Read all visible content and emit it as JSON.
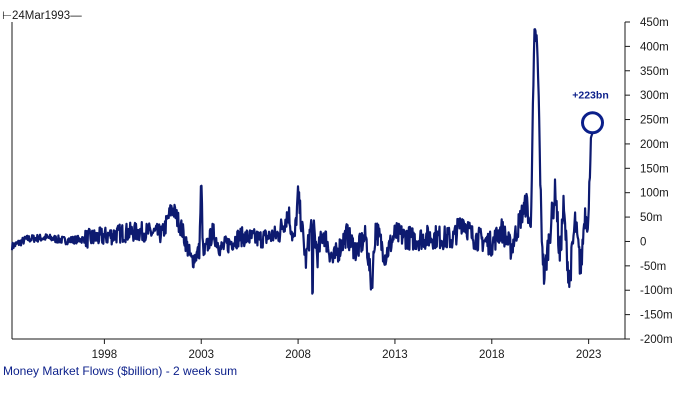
{
  "chart_data": {
    "type": "line",
    "corner_label": "⊢24Mar1993—",
    "caption": "Money Market Flows ($billion) - 2 week sum",
    "annotation": "+223bn",
    "x_tick_labels": [
      "1998",
      "2003",
      "2008",
      "2013",
      "2018",
      "2023"
    ],
    "x_ticks": [
      1998,
      2003,
      2008,
      2013,
      2018,
      2023
    ],
    "xlim": [
      1993.23,
      2024.0
    ],
    "y_tick_labels": [
      "450m",
      "400m",
      "350m",
      "300m",
      "250m",
      "200m",
      "150m",
      "100m",
      "50m",
      "0",
      "-50m",
      "-100m",
      "-150m",
      "-200m"
    ],
    "y_ticks": [
      450,
      400,
      350,
      300,
      250,
      200,
      150,
      100,
      50,
      0,
      -50,
      -100,
      -150,
      -200
    ],
    "ylim": [
      -200,
      450
    ],
    "y_axis_side": "right",
    "grid": false,
    "legend": "none",
    "line_color": "#0d1a70",
    "annotation_color": "#0b1f8a",
    "series": [
      {
        "x": [
          1993.23,
          1994.0,
          1995.0,
          1996.0,
          1997.0,
          1998.0,
          1999.0,
          2000.0,
          2001.0,
          2001.5,
          2002.0,
          2002.5,
          2002.9,
          2003.0,
          2003.1,
          2003.6,
          2004.0,
          2005.0,
          2006.0,
          2007.0,
          2007.5,
          2007.8,
          2008.0,
          2008.4,
          2008.7,
          2008.75,
          2008.8,
          2009.0,
          2009.3,
          2009.8,
          2010.5,
          2011.0,
          2011.5,
          2011.8,
          2012.0,
          2012.5,
          2013.0,
          2014.0,
          2015.0,
          2016.0,
          2016.5,
          2017.0,
          2018.0,
          2018.5,
          2019.0,
          2019.5,
          2019.8,
          2020.0,
          2020.2,
          2020.3,
          2020.4,
          2020.55,
          2020.7,
          2021.0,
          2021.3,
          2021.5,
          2021.7,
          2022.0,
          2022.3,
          2022.6,
          2022.8,
          2023.0,
          2023.1,
          2023.2
        ],
        "values": [
          -10,
          5,
          8,
          2,
          5,
          10,
          18,
          20,
          15,
          70,
          25,
          -40,
          -20,
          125,
          -30,
          20,
          -15,
          10,
          5,
          15,
          60,
          -5,
          95,
          -40,
          40,
          -150,
          30,
          -30,
          20,
          -40,
          15,
          -20,
          10,
          -95,
          30,
          -30,
          15,
          5,
          10,
          5,
          45,
          10,
          -5,
          25,
          -15,
          50,
          80,
          20,
          410,
          423,
          330,
          45,
          -75,
          20,
          110,
          -40,
          70,
          -85,
          40,
          -60,
          60,
          40,
          210,
          223
        ]
      }
    ]
  }
}
